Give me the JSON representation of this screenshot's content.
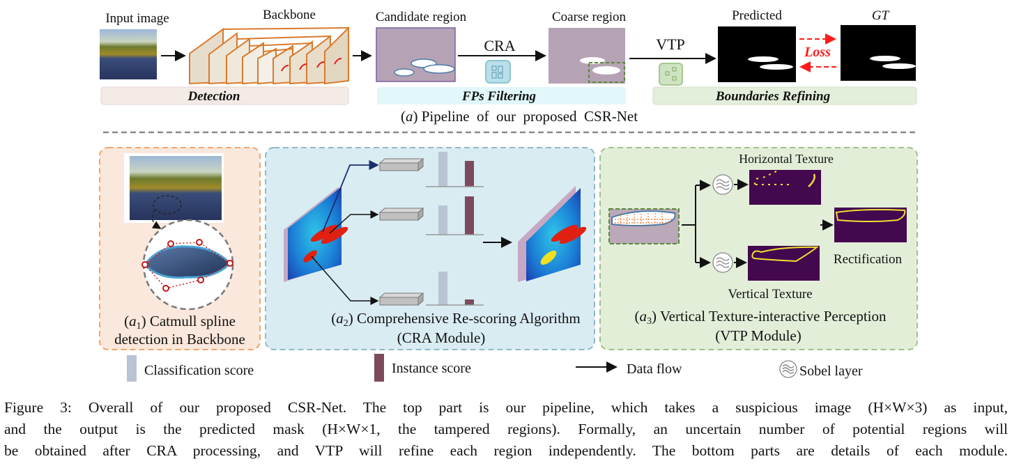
{
  "pipeline": {
    "input_label": "Input image",
    "backbone_label": "Backbone",
    "candidate_label": "Candidate region",
    "cra_label": "CRA",
    "coarse_label": "Coarse region",
    "vtp_label": "VTP",
    "predicted_label": "Predicted",
    "gt_label": "GT",
    "loss_label": "Loss",
    "stages": [
      "Detection",
      "FPs Filtering",
      "Boundaries Refining"
    ],
    "subcaption_letter": "a",
    "subcaption_text": "Pipeline  of  our  proposed  CSR-Net",
    "colors": {
      "detection": "#f5ebe6",
      "fps_filtering": "#e1f7fa",
      "boundaries_refining": "#e3eedb",
      "loss": "#ff1a1a"
    }
  },
  "modules": {
    "a1": {
      "letter": "a",
      "sub": "1",
      "line1": "Catmull spline",
      "line2": "detection in Backbone",
      "color": "#fbe8dc"
    },
    "a2": {
      "letter": "a",
      "sub": "2",
      "line1": "Comprehensive Re-scoring Algorithm",
      "line2": "(CRA Module)",
      "color": "#d9ecf2"
    },
    "a3": {
      "letter": "a",
      "sub": "3",
      "line1": "Vertical Texture-interactive Perception",
      "line2": "(VTP Module)",
      "horizontal_label": "Horizontal Texture",
      "vertical_label": "Vertical Texture",
      "rectification_label": "Rectification",
      "color": "#e3eed9"
    }
  },
  "legend": {
    "classification": "Classification score",
    "instance": "Instance score",
    "data_flow": "Data flow",
    "sobel": "Sobel layer",
    "colors": {
      "classification": "#b8c3d4",
      "instance": "#7d4a5d"
    }
  },
  "caption": {
    "line1": "Figure 3: Overall of our proposed CSR-Net. The top part is our pipeline, which takes a suspicious image (H×W×3) as input,",
    "line2": "and the output is the predicted mask (H×W×1, the tampered regions). Formally, an uncertain number of potential regions will",
    "line3": "be obtained after CRA processing, and VTP will refine each region independently. The bottom parts are details of each module."
  }
}
